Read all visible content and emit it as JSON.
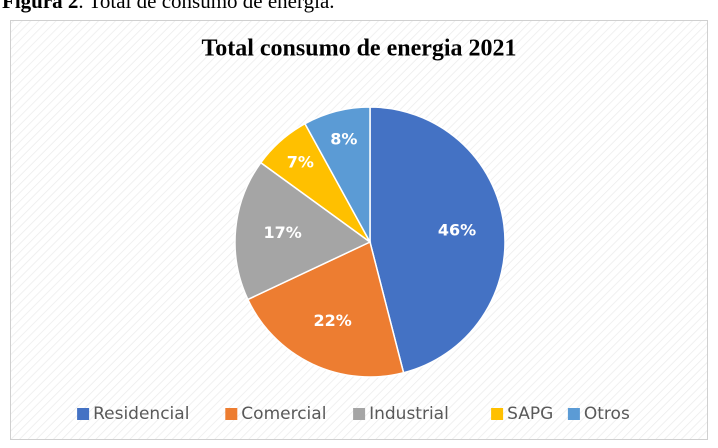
{
  "caption": {
    "label": "Figura 2",
    "text": ". Total de consumo de energía."
  },
  "chart_data": {
    "type": "pie",
    "title": "Total consumo de energia 2021",
    "categories": [
      "Residencial",
      "Comercial",
      "Industrial",
      "SAPG",
      "Otros"
    ],
    "values": [
      46,
      22,
      17,
      7,
      8
    ],
    "value_labels": [
      "46%",
      "22%",
      "17%",
      "7%",
      "8%"
    ],
    "colors": [
      "#4472c4",
      "#ed7d31",
      "#a5a5a5",
      "#ffc000",
      "#5b9bd5"
    ],
    "legend": "bottom"
  }
}
